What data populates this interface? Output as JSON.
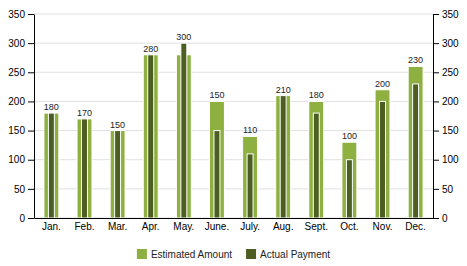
{
  "chart_data": {
    "type": "bar",
    "categories": [
      "Jan.",
      "Feb.",
      "Mar.",
      "Apr.",
      "May.",
      "June.",
      "July.",
      "Aug.",
      "Sept.",
      "Oct.",
      "Nov.",
      "Dec."
    ],
    "series": [
      {
        "name": "Estimated Amount",
        "color": "#8DB040",
        "values": [
          180,
          170,
          150,
          280,
          280,
          200,
          140,
          210,
          200,
          130,
          220,
          260
        ]
      },
      {
        "name": "Actual Payment",
        "color": "#4D5E22",
        "values": [
          180,
          170,
          150,
          280,
          300,
          150,
          110,
          210,
          180,
          100,
          200,
          230
        ],
        "data_labels": true
      }
    ],
    "ylim": [
      0,
      350
    ],
    "yticks": [
      0,
      50,
      100,
      150,
      200,
      250,
      300,
      350
    ],
    "y2lim": [
      0,
      350
    ],
    "y2ticks": [
      0,
      50,
      100,
      150,
      200,
      250,
      300,
      350
    ],
    "grid": true,
    "legend": "bottom"
  }
}
